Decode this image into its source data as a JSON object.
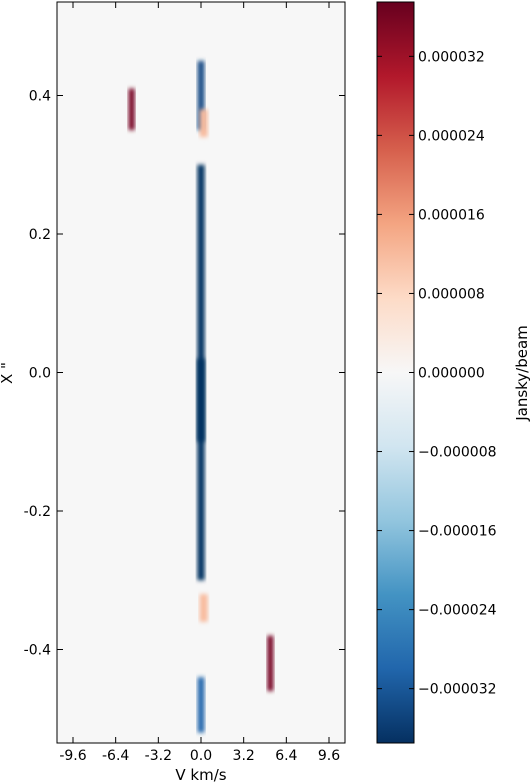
{
  "chart_data": {
    "type": "heatmap",
    "xlabel": "V km/s",
    "ylabel": "X \"",
    "colorbar_label": "Jansky/beam",
    "xlim": [
      -10.8,
      10.8
    ],
    "ylim": [
      -0.535,
      0.535
    ],
    "x_ticks": [
      -9.6,
      -6.4,
      -3.2,
      0.0,
      3.2,
      6.4,
      9.6
    ],
    "x_tick_labels": [
      "-9.6",
      "-6.4",
      "-3.2",
      "0.0",
      "3.2",
      "6.4",
      "9.6"
    ],
    "y_ticks": [
      0.4,
      0.2,
      0.0,
      -0.2,
      -0.4
    ],
    "y_tick_labels": [
      "0.4",
      "0.2",
      "0.0",
      "-0.2",
      "-0.4"
    ],
    "colorbar_range": [
      -3.75e-05,
      3.75e-05
    ],
    "colorbar_ticks": [
      3.2e-05,
      2.4e-05,
      1.6e-05,
      8e-06,
      0.0,
      -8e-06,
      -1.6e-05,
      -2.4e-05,
      -3.2e-05
    ],
    "colorbar_tick_labels": [
      "0.000032",
      "0.000024",
      "0.000016",
      "0.000008",
      "0.000000",
      "−0.000008",
      "−0.000016",
      "−0.000024",
      "−0.000032"
    ],
    "colormap": [
      "#053061",
      "#2166ac",
      "#4393c3",
      "#92c5de",
      "#d1e5f0",
      "#f7f7f7",
      "#fddbc7",
      "#f4a582",
      "#d6604d",
      "#b2182b",
      "#67001f"
    ],
    "features": [
      {
        "v": 0.0,
        "x": 0.1,
        "dv": 0.55,
        "dx": 0.4,
        "value": -4e-05
      },
      {
        "v": 0.0,
        "x": -0.14,
        "dv": 0.55,
        "dx": 0.32,
        "value": -4e-05
      },
      {
        "v": 0.0,
        "x": 0.4,
        "dv": 0.5,
        "dx": 0.1,
        "value": -3.4e-05
      },
      {
        "v": 0.0,
        "x": -0.48,
        "dv": 0.5,
        "dx": 0.08,
        "value": -3e-05
      },
      {
        "v": -5.2,
        "x": 0.38,
        "dv": 0.45,
        "dx": 0.06,
        "value": 3.6e-05
      },
      {
        "v": 5.2,
        "x": -0.42,
        "dv": 0.45,
        "dx": 0.08,
        "value": 3.6e-05
      },
      {
        "v": 0.2,
        "x": 0.36,
        "dv": 0.6,
        "dx": 0.04,
        "value": 1.2e-05
      },
      {
        "v": 0.2,
        "x": -0.34,
        "dv": 0.6,
        "dx": 0.04,
        "value": 1.2e-05
      }
    ]
  }
}
